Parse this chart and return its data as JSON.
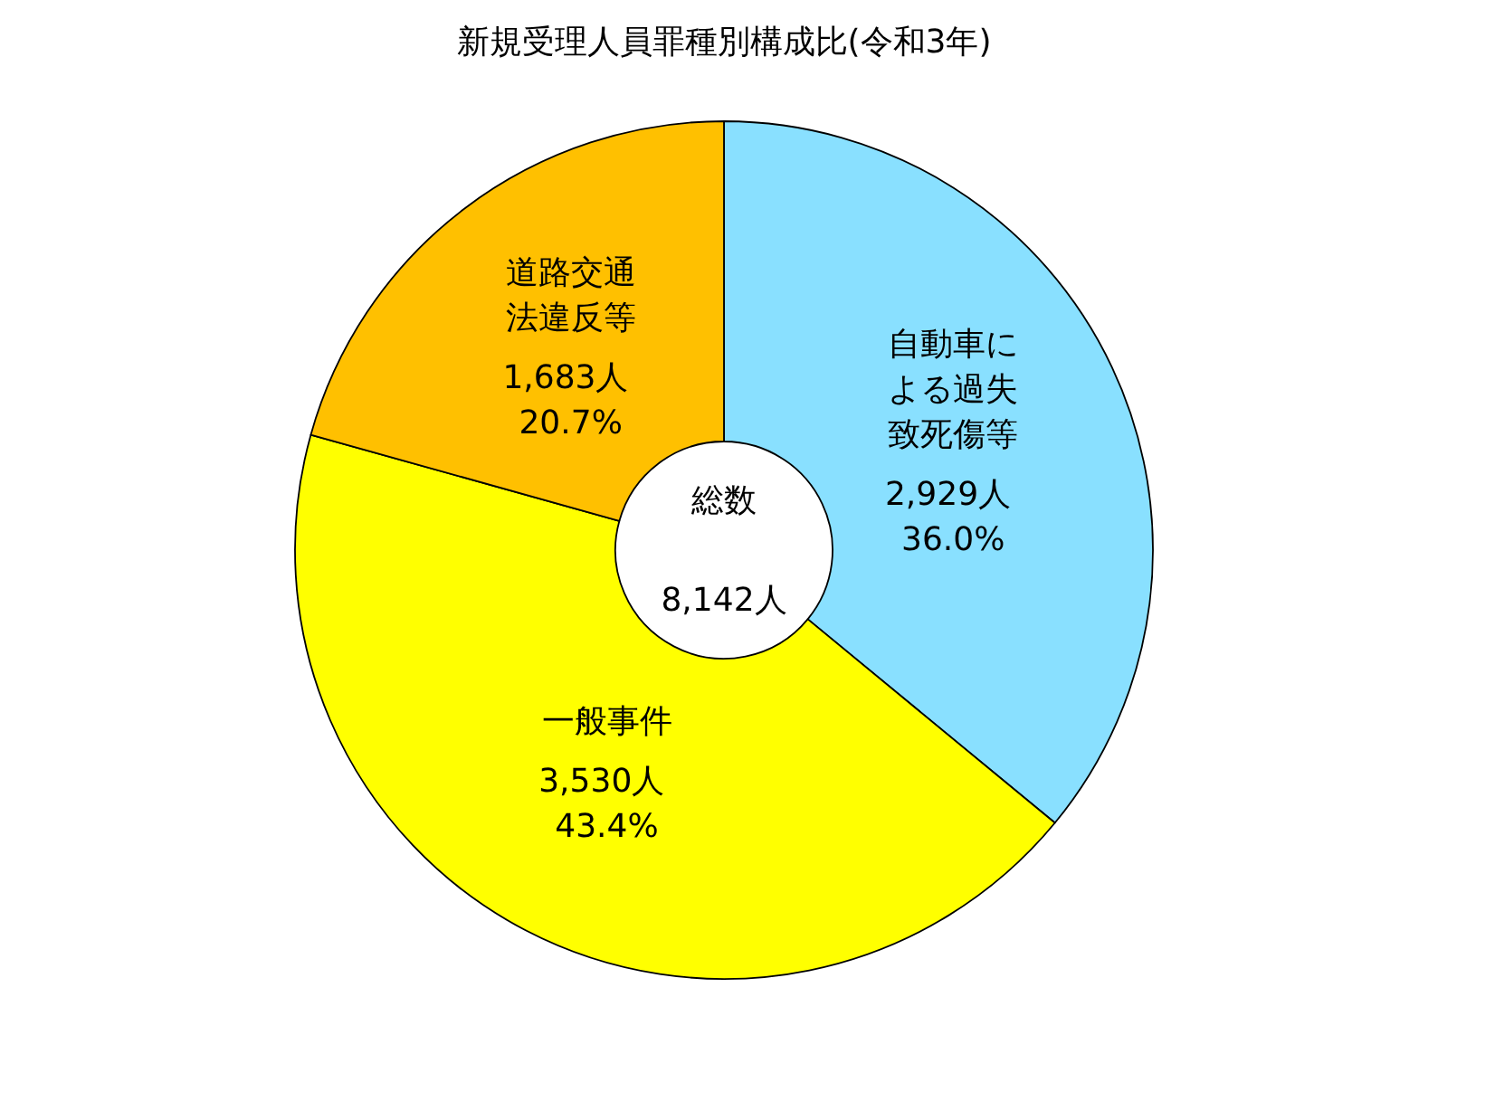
{
  "chart_data": {
    "type": "donut",
    "title": "新規受理人員罪種別構成比(令和3年)",
    "categories": [
      "自動車による過失致死傷等",
      "一般事件",
      "道路交通法違反等"
    ],
    "values": [
      2929,
      3530,
      1683
    ],
    "colors": [
      "#89e0ff",
      "#ffff00",
      "#ffc000"
    ],
    "value_labels": [
      "2,929人 36.0%",
      "3,530人 43.4%",
      "1,683人 20.7%"
    ],
    "annotations": [
      "総数",
      "8,142人"
    ]
  }
}
